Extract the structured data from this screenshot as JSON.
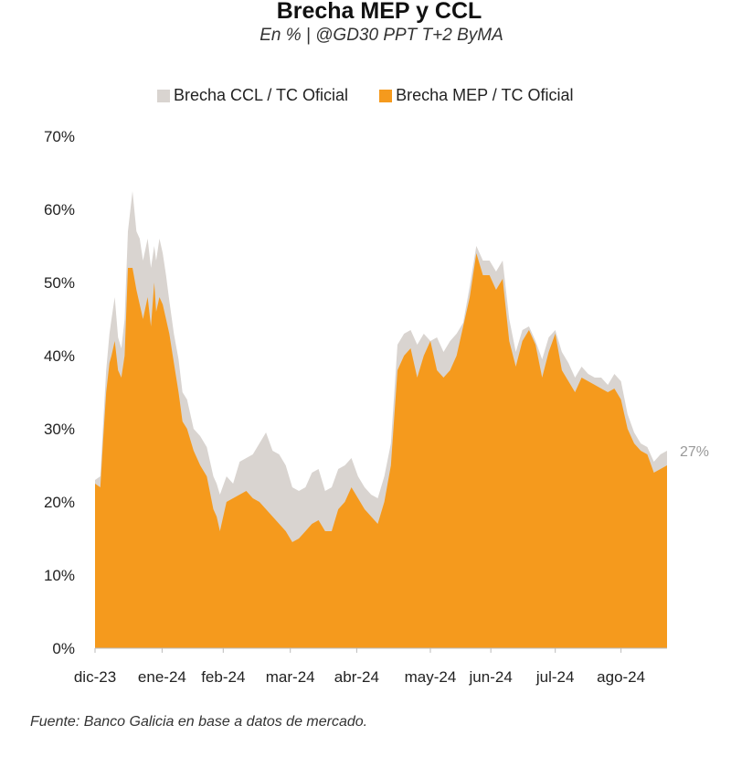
{
  "chart_data": {
    "type": "area",
    "title": "Brecha MEP y CCL",
    "subtitle": "En % | @GD30 PPT T+2 ByMA",
    "xlabel": "",
    "ylabel": "",
    "ylim": [
      0,
      70
    ],
    "y_ticks": [
      "0%",
      "10%",
      "20%",
      "30%",
      "40%",
      "50%",
      "60%",
      "70%"
    ],
    "x_ticks": [
      "dic-23",
      "ene-24",
      "feb-24",
      "mar-24",
      "abr-24",
      "may-24",
      "jun-24",
      "jul-24",
      "ago-24"
    ],
    "x_tick_positions": [
      0,
      1.02,
      1.95,
      2.97,
      3.98,
      5.1,
      6.02,
      7.0,
      8.0
    ],
    "grid": false,
    "legend_position": "top",
    "end_label": "27%",
    "colors": {
      "ccl": "#d9d4d0",
      "mep": "#f59a1d"
    },
    "series": [
      {
        "name": "Brecha CCL / TC Oficial",
        "x": [
          0,
          0.08,
          0.12,
          0.17,
          0.22,
          0.25,
          0.3,
          0.35,
          0.4,
          0.45,
          0.5,
          0.57,
          0.63,
          0.68,
          0.73,
          0.8,
          0.85,
          0.9,
          0.93,
          0.98,
          1.03,
          1.08,
          1.13,
          1.2,
          1.27,
          1.33,
          1.4,
          1.5,
          1.6,
          1.7,
          1.8,
          1.85,
          1.9,
          2.0,
          2.1,
          2.2,
          2.3,
          2.4,
          2.5,
          2.6,
          2.7,
          2.8,
          2.9,
          3.0,
          3.1,
          3.2,
          3.3,
          3.4,
          3.5,
          3.6,
          3.7,
          3.8,
          3.9,
          4.0,
          4.1,
          4.2,
          4.3,
          4.4,
          4.5,
          4.6,
          4.7,
          4.8,
          4.9,
          5.0,
          5.1,
          5.2,
          5.3,
          5.4,
          5.5,
          5.6,
          5.7,
          5.8,
          5.9,
          6.0,
          6.1,
          6.2,
          6.3,
          6.4,
          6.5,
          6.6,
          6.7,
          6.8,
          6.9,
          7.0,
          7.1,
          7.2,
          7.3,
          7.4,
          7.5,
          7.6,
          7.7,
          7.8,
          7.9,
          8.0,
          8.1,
          8.2,
          8.3,
          8.4,
          8.5,
          8.6,
          8.7
        ],
        "values": [
          23,
          23.5,
          30,
          38,
          43,
          45,
          48,
          42.5,
          41,
          45,
          57,
          62.5,
          57,
          56,
          53,
          56,
          52,
          55,
          53,
          56,
          54,
          51,
          47.5,
          43,
          39.5,
          35,
          34,
          30,
          29,
          27.5,
          23.5,
          22.5,
          21,
          23.5,
          22.5,
          25.5,
          26,
          26.5,
          28,
          29.5,
          27,
          26.5,
          25,
          22,
          21.5,
          22,
          24,
          24.5,
          21.5,
          22,
          24.5,
          25,
          26,
          23.5,
          22,
          21,
          20.5,
          23.5,
          28,
          41.5,
          43,
          43.5,
          41.5,
          43,
          42,
          42.5,
          40.5,
          42,
          43,
          44.5,
          49.5,
          55,
          53,
          53,
          51.5,
          53,
          45,
          40.5,
          43.5,
          44,
          42,
          39.5,
          42.5,
          43.5,
          40.5,
          39,
          37,
          38.5,
          37.5,
          37,
          37,
          36,
          37.5,
          36.5,
          32,
          29.5,
          28,
          27.5,
          25.5,
          26.5,
          27
        ]
      },
      {
        "name": "Brecha MEP / TC Oficial",
        "x": [
          0,
          0.08,
          0.12,
          0.17,
          0.22,
          0.25,
          0.3,
          0.35,
          0.4,
          0.45,
          0.5,
          0.57,
          0.63,
          0.68,
          0.73,
          0.8,
          0.85,
          0.9,
          0.93,
          0.98,
          1.03,
          1.08,
          1.13,
          1.2,
          1.27,
          1.33,
          1.4,
          1.5,
          1.6,
          1.7,
          1.8,
          1.85,
          1.9,
          2.0,
          2.1,
          2.2,
          2.3,
          2.4,
          2.5,
          2.6,
          2.7,
          2.8,
          2.9,
          3.0,
          3.1,
          3.2,
          3.3,
          3.4,
          3.5,
          3.6,
          3.7,
          3.8,
          3.9,
          4.0,
          4.1,
          4.2,
          4.3,
          4.4,
          4.5,
          4.6,
          4.7,
          4.8,
          4.9,
          5.0,
          5.1,
          5.2,
          5.3,
          5.4,
          5.5,
          5.6,
          5.7,
          5.8,
          5.9,
          6.0,
          6.1,
          6.2,
          6.3,
          6.4,
          6.5,
          6.6,
          6.7,
          6.8,
          6.9,
          7.0,
          7.1,
          7.2,
          7.3,
          7.4,
          7.5,
          7.6,
          7.7,
          7.8,
          7.9,
          8.0,
          8.1,
          8.2,
          8.3,
          8.4,
          8.5,
          8.6,
          8.7
        ],
        "values": [
          22.5,
          22,
          28,
          35,
          39,
          40,
          42,
          38,
          37,
          40,
          52,
          52,
          49,
          47,
          45,
          48,
          44,
          50,
          46,
          48,
          47,
          45,
          43,
          39,
          35,
          31,
          30,
          27,
          25,
          23.5,
          19,
          18,
          16,
          20,
          20.5,
          21,
          21.5,
          20.5,
          20,
          19,
          18,
          17,
          16,
          14.5,
          15,
          16,
          17,
          17.5,
          16,
          16,
          19,
          20,
          22,
          20.5,
          19,
          18,
          17,
          20,
          25,
          38,
          40,
          41,
          37,
          40,
          42,
          38,
          37,
          38,
          40,
          44,
          48,
          54,
          51,
          51,
          49,
          50.5,
          42,
          38.5,
          42,
          43.5,
          41.5,
          37,
          40.5,
          43,
          38,
          36.5,
          35,
          37,
          36.5,
          36,
          35.5,
          35,
          35.5,
          34,
          30,
          28,
          27,
          26.5,
          24,
          24.5,
          25
        ]
      }
    ]
  },
  "footer": {
    "source": "Fuente: Banco Galicia en base a datos de mercado."
  }
}
